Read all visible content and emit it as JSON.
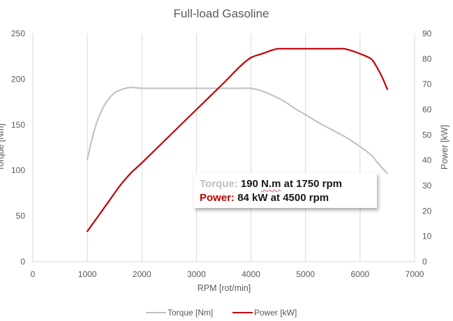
{
  "chart_data": {
    "type": "line",
    "title": "Full-load Gasoline",
    "xlabel": "RPM [rot/min]",
    "ylabel_left": "Torque [Nm]",
    "ylabel_right": "Power [kW]",
    "xlim": [
      0,
      7000
    ],
    "ylim_left": [
      0,
      250
    ],
    "ylim_right": [
      0,
      90
    ],
    "x_ticks": [
      0,
      1000,
      2000,
      3000,
      4000,
      5000,
      6000,
      7000
    ],
    "y_ticks_left": [
      0,
      50,
      100,
      150,
      200,
      250
    ],
    "y_ticks_right": [
      0,
      10,
      20,
      30,
      40,
      50,
      60,
      70,
      80,
      90
    ],
    "grid": "vertical",
    "legend_position": "bottom",
    "series": [
      {
        "name": "Torque [Nm]",
        "axis": "left",
        "color": "#bfbfbf",
        "x": [
          1000,
          1100,
          1200,
          1300,
          1400,
          1500,
          1600,
          1700,
          1800,
          1900,
          2000,
          2500,
          3000,
          3500,
          3800,
          4000,
          4200,
          4400,
          4600,
          4800,
          5000,
          5250,
          5500,
          5750,
          6000,
          6200,
          6300,
          6400,
          6500
        ],
        "values": [
          112,
          138,
          157,
          170,
          179,
          185,
          188,
          190,
          191,
          190.5,
          190,
          190,
          190,
          190,
          190,
          190,
          187,
          182,
          176,
          168,
          161,
          152,
          144,
          136,
          126,
          117,
          110,
          103,
          97
        ]
      },
      {
        "name": "Power [kW]",
        "axis": "right",
        "color": "#c00000",
        "x": [
          1000,
          1200,
          1400,
          1600,
          1800,
          2000,
          2500,
          3000,
          3500,
          3800,
          4000,
          4200,
          4400,
          4500,
          4600,
          5000,
          5500,
          5700,
          5800,
          6000,
          6200,
          6300,
          6400,
          6500
        ],
        "values": [
          12,
          18,
          24,
          30,
          35,
          39,
          49.5,
          60,
          70.5,
          77,
          80.5,
          82,
          83.5,
          84,
          84,
          84,
          84,
          84,
          83.5,
          82,
          80,
          77,
          73,
          68
        ]
      }
    ]
  },
  "callout": {
    "torque_label": "Torque:",
    "torque_value": "190 N.m at 1750 rpm",
    "power_label": "Power:",
    "power_value": "84 kW at 4500 rpm"
  }
}
